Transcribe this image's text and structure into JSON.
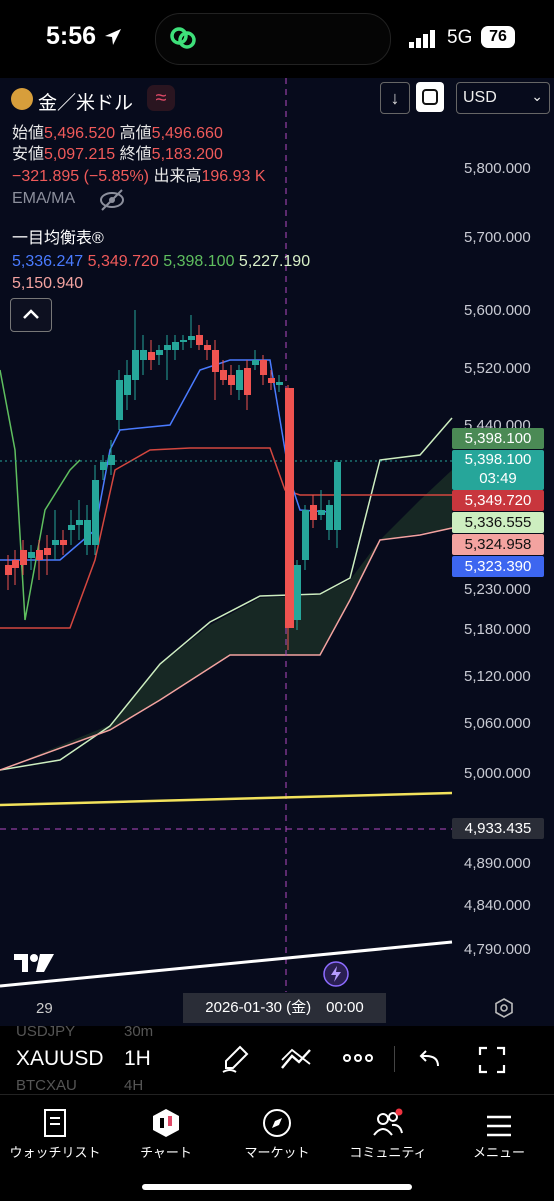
{
  "status_bar": {
    "time": "5:56",
    "network": "5G",
    "battery": "76"
  },
  "header": {
    "symbol_name": "金／米ドル",
    "currency": "USD",
    "open_label": "始値",
    "open": "5,496.520",
    "high_label": "高値",
    "high": "5,496.660",
    "low_label": "安値",
    "low": "5,097.215",
    "close_label": "終値",
    "close": "5,183.200",
    "change": "−321.895 (−5.85%)",
    "volume_label": "出来高",
    "volume": "196.93 K",
    "ema_label": "EMA/MA",
    "ichimoku_label": "一目均衡表®",
    "ichimoku_values": [
      "5,336.247",
      "5,349.720",
      "5,398.100",
      "5,227.190",
      "5,150.940"
    ],
    "ichimoku_colors": [
      "#4a7bff",
      "#f05a5a",
      "#5fbf5f",
      "#d8f0c8",
      "#f3a3a0"
    ]
  },
  "price_axis": [
    "5,800.000",
    "5,700.000",
    "5,600.000",
    "5,520.000",
    "5,440.000",
    "5,230.000",
    "5,180.000",
    "5,120.000",
    "5,060.000",
    "5,000.000",
    "4,890.000",
    "4,840.000",
    "4,790.000"
  ],
  "price_tags": {
    "last_price": "5,398.100",
    "current_price": "5,398.100",
    "countdown": "03:49",
    "kijun": "5,349.720",
    "senkou_a": "5,336.555",
    "chikou": "5,324.958",
    "tenkan": "5,323.390",
    "crosshair_price": "4,933.435"
  },
  "time_axis": {
    "label_29": "29",
    "crosshair_date": "2026-01-30 (金)　00:00"
  },
  "toolbar": {
    "symbol": "XAUUSD",
    "interval": "1H",
    "ghost_symbol_above": "USDJPY",
    "ghost_interval_above": "30m",
    "ghost_symbol_below": "BTCXAU",
    "ghost_interval_below": "4H"
  },
  "tabs": [
    {
      "label": "ウォッチリスト",
      "icon": "bookmark-icon"
    },
    {
      "label": "チャート",
      "icon": "chart-icon"
    },
    {
      "label": "マーケット",
      "icon": "compass-icon"
    },
    {
      "label": "コミュニティ",
      "icon": "community-icon"
    },
    {
      "label": "メニュー",
      "icon": "menu-icon"
    }
  ],
  "colors": {
    "up": "#26a69a",
    "down": "#ef5350",
    "background": "#070b1c",
    "tenkan": "#4a7bff",
    "kijun": "#f05a5a",
    "span_a": "#cdeec0",
    "span_b": "#f3a3a0",
    "trendline_yellow": "#f3e35c"
  }
}
